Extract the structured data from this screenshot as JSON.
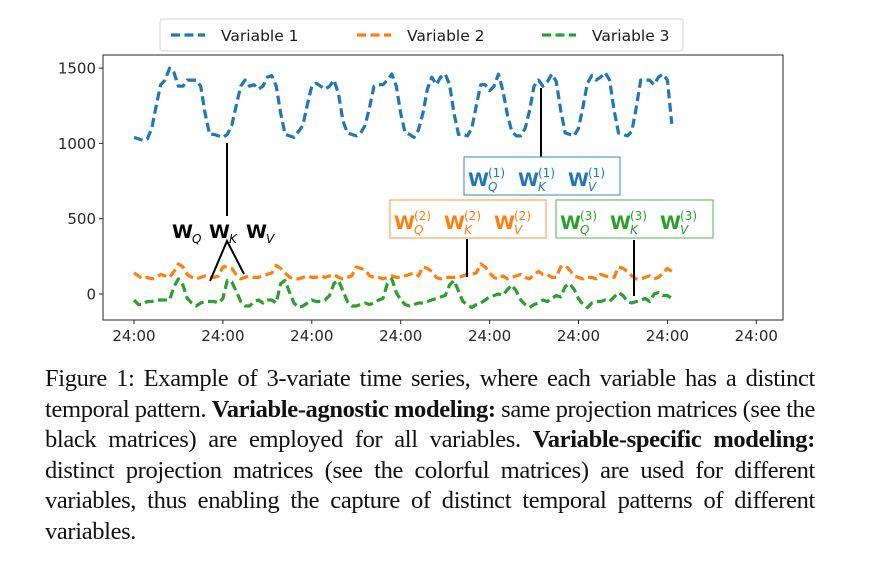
{
  "chart_data": {
    "type": "line",
    "title": "",
    "xlabel": "",
    "ylabel": "",
    "ylim": [
      -180,
      1580
    ],
    "yticks": [
      0,
      500,
      1000,
      1500
    ],
    "xtick_labels": [
      "24:00",
      "24:00",
      "24:00",
      "24:00",
      "24:00",
      "24:00",
      "24:00",
      "24:00"
    ],
    "grid": false,
    "legend_position": "upper center (above axes)",
    "line_style": "dashed",
    "series": [
      {
        "name": "Variable 1",
        "color": "#1f77b4",
        "values": [
          1040,
          1030,
          1020,
          1030,
          1100,
          1250,
          1390,
          1420,
          1500,
          1470,
          1380,
          1380,
          1420,
          1420,
          1420,
          1380,
          1200,
          1060,
          1060,
          1050,
          1040,
          1060,
          1120,
          1250,
          1380,
          1420,
          1380,
          1390,
          1360,
          1380,
          1440,
          1450,
          1380,
          1200,
          1060,
          1050,
          1040,
          1080,
          1120,
          1260,
          1380,
          1400,
          1380,
          1360,
          1380,
          1420,
          1330,
          1150,
          1070,
          1060,
          1050,
          1070,
          1120,
          1240,
          1380,
          1390,
          1390,
          1420,
          1460,
          1380,
          1200,
          1070,
          1060,
          1040,
          1090,
          1200,
          1360,
          1440,
          1390,
          1440,
          1460,
          1390,
          1200,
          1060,
          1060,
          1050,
          1100,
          1250,
          1390,
          1390,
          1350,
          1380,
          1460,
          1350,
          1190,
          1080,
          1050,
          1050,
          1100,
          1220,
          1380,
          1420,
          1380,
          1410,
          1460,
          1410,
          1220,
          1070,
          1060,
          1050,
          1100,
          1240,
          1400,
          1450,
          1420,
          1440,
          1470,
          1420,
          1220,
          1070,
          1060,
          1050,
          1080,
          1240,
          1420,
          1420,
          1420,
          1390,
          1440,
          1460,
          1420,
          1130
        ]
      },
      {
        "name": "Variable 2",
        "color": "#ff7f0e",
        "values": [
          140,
          120,
          100,
          110,
          100,
          110,
          130,
          120,
          110,
          150,
          200,
          180,
          130,
          110,
          100,
          110,
          120,
          110,
          110,
          120,
          180,
          180,
          170,
          130,
          100,
          110,
          120,
          110,
          110,
          120,
          130,
          140,
          190,
          170,
          140,
          110,
          100,
          100,
          110,
          120,
          110,
          110,
          120,
          110,
          120,
          130,
          110,
          100,
          110,
          120,
          180,
          170,
          160,
          120,
          110,
          110,
          100,
          110,
          120,
          110,
          110,
          120,
          130,
          140,
          120,
          180,
          170,
          150,
          110,
          100,
          110,
          110,
          110,
          110,
          120,
          130,
          130,
          140,
          200,
          180,
          140,
          110,
          100,
          120,
          100,
          110,
          120,
          130,
          110,
          100,
          130,
          150,
          130,
          130,
          110,
          110,
          180,
          190,
          160,
          120,
          110,
          100,
          110,
          110,
          100,
          130,
          120,
          110,
          110,
          180,
          170,
          150,
          120,
          100,
          100,
          110,
          120,
          100,
          110,
          140,
          170,
          150
        ]
      },
      {
        "name": "Variable 3",
        "color": "#2ca02c",
        "values": [
          -40,
          -70,
          -70,
          -50,
          -50,
          -40,
          -40,
          -40,
          -40,
          50,
          100,
          60,
          -30,
          -60,
          -80,
          -60,
          -50,
          -50,
          -50,
          -60,
          -30,
          90,
          80,
          20,
          -50,
          -80,
          -80,
          -50,
          -40,
          -60,
          -40,
          -40,
          -60,
          70,
          90,
          10,
          -60,
          -90,
          -80,
          -60,
          -40,
          -50,
          -50,
          -40,
          -10,
          70,
          90,
          20,
          -50,
          -80,
          -80,
          -70,
          -60,
          -70,
          -60,
          -40,
          -30,
          70,
          100,
          10,
          -40,
          -70,
          -80,
          -70,
          -60,
          -60,
          -50,
          -40,
          -30,
          -20,
          -10,
          60,
          90,
          20,
          -50,
          -70,
          -90,
          -70,
          -60,
          -40,
          -20,
          -10,
          0,
          -10,
          30,
          60,
          20,
          -40,
          -70,
          -90,
          -70,
          -60,
          -40,
          -50,
          -30,
          -10,
          -20,
          50,
          70,
          30,
          -30,
          -70,
          -90,
          -60,
          -50,
          -50,
          -40,
          -50,
          -20,
          10,
          -10,
          -50,
          -60,
          -50,
          -40,
          -30,
          -50,
          0,
          10,
          -10,
          -10,
          -30
        ]
      }
    ],
    "annotations": [
      {
        "text": "W_Q W_K W_V",
        "color": "#000000",
        "meaning": "shared projection matrices (variable-agnostic)"
      },
      {
        "text": "W_Q^(1) W_K^(1) W_V^(1)",
        "color": "#1f77b4",
        "boxed": true
      },
      {
        "text": "W_Q^(2) W_K^(2) W_V^(2)",
        "color": "#ff7f0e",
        "boxed": true
      },
      {
        "text": "W_Q^(3) W_K^(3) W_V^(3)",
        "color": "#2ca02c",
        "boxed": true
      }
    ]
  },
  "legend": {
    "items": [
      {
        "label": "Variable 1",
        "color": "#1f77b4"
      },
      {
        "label": "Variable 2",
        "color": "#ff7f0e"
      },
      {
        "label": "Variable 3",
        "color": "#2ca02c"
      }
    ]
  },
  "axes": {
    "y_ticks": [
      "1500",
      "1000",
      "500",
      "0"
    ],
    "x_ticks": [
      "24:00",
      "24:00",
      "24:00",
      "24:00",
      "24:00",
      "24:00",
      "24:00",
      "24:00"
    ]
  },
  "matrices": {
    "shared": {
      "w": "W",
      "subs": [
        "Q",
        "K",
        "V"
      ],
      "sup": "",
      "color": "#000000"
    },
    "var1": {
      "w": "W",
      "subs": [
        "Q",
        "K",
        "V"
      ],
      "sup": "(1)",
      "color": "#1f77b4"
    },
    "var2": {
      "w": "W",
      "subs": [
        "Q",
        "K",
        "V"
      ],
      "sup": "(2)",
      "color": "#ff7f0e"
    },
    "var3": {
      "w": "W",
      "subs": [
        "Q",
        "K",
        "V"
      ],
      "sup": "(3)",
      "color": "#2ca02c"
    }
  },
  "caption": {
    "prefix": "Figure 1: Example of 3-variate time series, where each variable has a distinct temporal pattern. ",
    "bold1": "Variable-agnostic modeling:",
    "mid": " same projection matrices (see the black matrices) are employed for all variables. ",
    "bold2": "Variable-specific modeling:",
    "suffix": " distinct projection matrices (see the colorful matrices) are used for different variables, thus enabling the capture of distinct temporal patterns of different variables."
  }
}
